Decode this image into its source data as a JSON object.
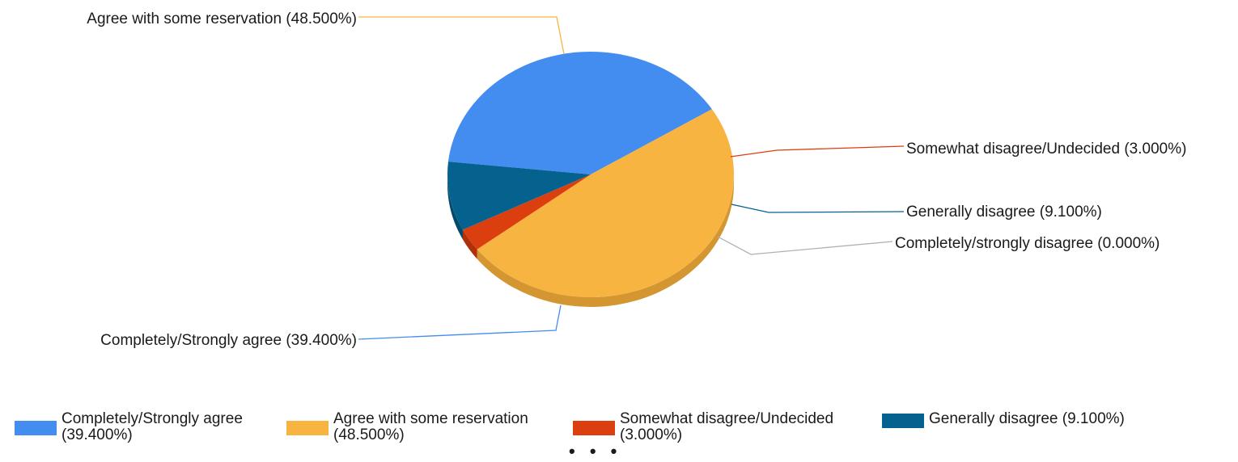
{
  "chart_data": {
    "type": "pie",
    "slices": [
      {
        "label": "Completely/Strongly agree",
        "value": 39.4,
        "display": "Completely/Strongly agree (39.400%)",
        "legend_line1": "Completely/Strongly agree",
        "legend_line2": "(39.400%)",
        "color": "#438CF0",
        "shade": "#3271C6"
      },
      {
        "label": "Agree with some reservation",
        "value": 48.5,
        "display": "Agree with some reservation (48.500%)",
        "legend_line1": "Agree with some reservation",
        "legend_line2": "(48.500%)",
        "color": "#F8B441",
        "shade": "#D39630"
      },
      {
        "label": "Somewhat disagree/Undecided",
        "value": 3.0,
        "display": "Somewhat disagree/Undecided (3.000%)",
        "legend_line1": "Somewhat disagree/Undecided",
        "legend_line2": "(3.000%)",
        "color": "#DC3F0F",
        "shade": "#B0300A"
      },
      {
        "label": "Generally disagree",
        "value": 9.1,
        "display": "Generally disagree (9.100%)",
        "legend_line1": "Generally disagree (9.100%)",
        "legend_line2": "",
        "color": "#05628F",
        "shade": "#044A6C"
      },
      {
        "label": "Completely/strongly disagree",
        "value": 0.0,
        "display": "Completely/strongly disagree (0.000%)",
        "color": "#B0B0B0",
        "shade": "#909090"
      }
    ],
    "legend_position": "bottom",
    "legend_overflow": "• • •"
  }
}
